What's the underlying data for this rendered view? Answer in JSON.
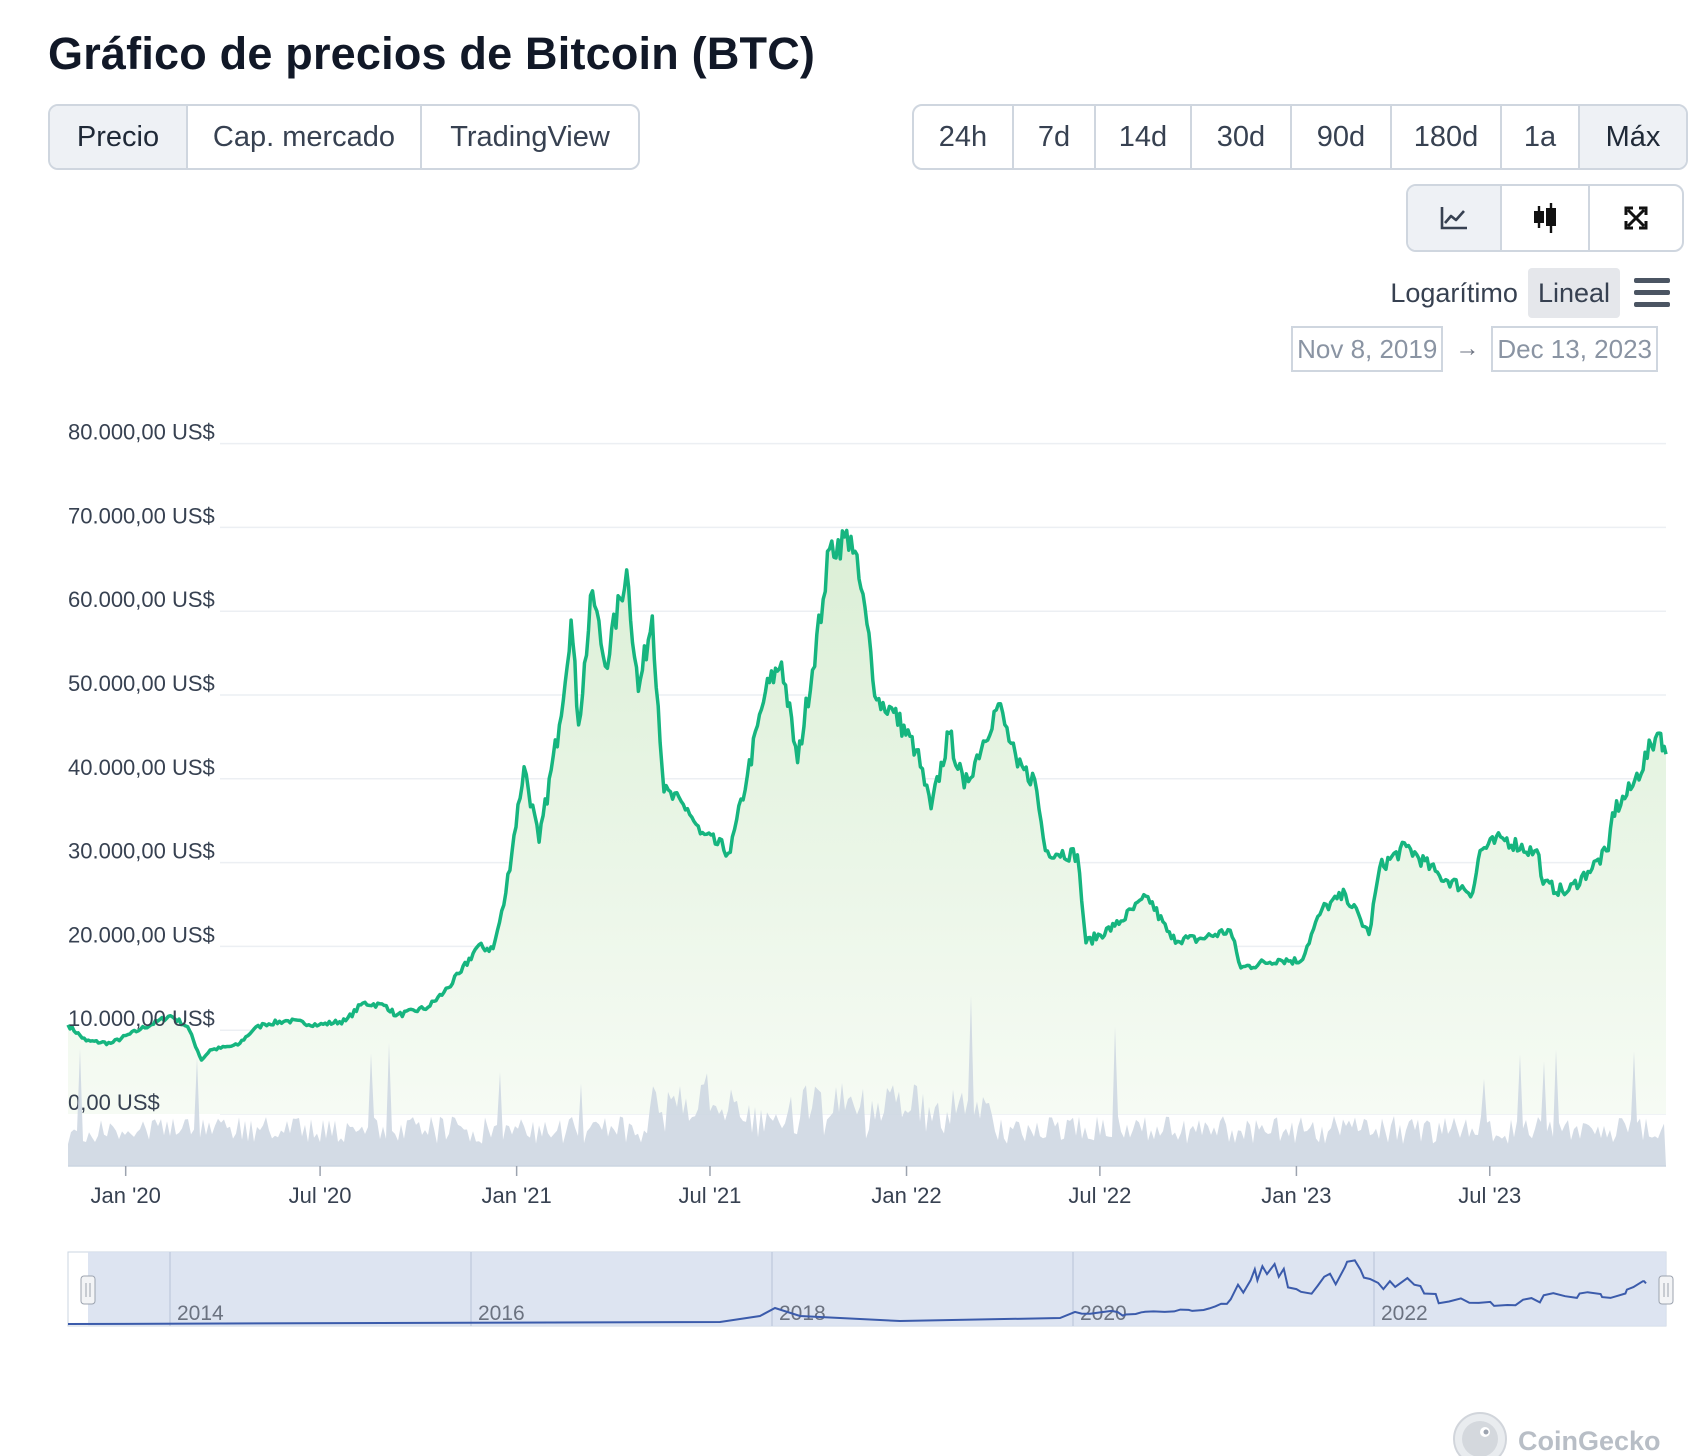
{
  "title": "Gráfico de precios de Bitcoin (BTC)",
  "view_tabs": [
    {
      "label": "Precio",
      "active": true
    },
    {
      "label": "Cap. mercado",
      "active": false
    },
    {
      "label": "TradingView",
      "active": false
    }
  ],
  "range_tabs": [
    {
      "label": "24h",
      "active": false
    },
    {
      "label": "7d",
      "active": false
    },
    {
      "label": "14d",
      "active": false
    },
    {
      "label": "30d",
      "active": false
    },
    {
      "label": "90d",
      "active": false
    },
    {
      "label": "180d",
      "active": false
    },
    {
      "label": "1a",
      "active": false
    },
    {
      "label": "Máx",
      "active": true
    }
  ],
  "tools": [
    {
      "icon": "line-chart-icon",
      "active": true
    },
    {
      "icon": "candlestick-icon",
      "active": false
    },
    {
      "icon": "expand-icon",
      "active": false
    }
  ],
  "scale": {
    "log_label": "Logarítimo",
    "linear_label": "Lineal",
    "active": "linear"
  },
  "date_range": {
    "from": "Nov 8, 2019",
    "to": "Dec 13, 2023",
    "arrow": "→"
  },
  "watermark": "CoinGecko",
  "colors": {
    "line": "#16b57f",
    "fill_top": "#dff0d8",
    "volume": "#cbd5e1",
    "navigator_line": "#3b5bab",
    "navigator_bg": "#d9e1f0"
  },
  "chart_data": {
    "type": "area",
    "y_scale": "linear",
    "ylim": [
      0,
      80000
    ],
    "y_ticks": [
      0,
      10000,
      20000,
      30000,
      40000,
      50000,
      60000,
      70000,
      80000
    ],
    "y_tick_labels": [
      "0,00 US$",
      "10.000,00 US$",
      "20.000,00 US$",
      "30.000,00 US$",
      "40.000,00 US$",
      "50.000,00 US$",
      "60.000,00 US$",
      "70.000,00 US$",
      "80.000,00 US$"
    ],
    "x_range": [
      "2019-11-08",
      "2023-12-13"
    ],
    "x_ticks": [
      "2020-01-01",
      "2020-07-01",
      "2021-01-01",
      "2021-07-01",
      "2022-01-01",
      "2022-07-01",
      "2023-01-01",
      "2023-07-01"
    ],
    "x_tick_labels": [
      "Jan '20",
      "Jul '20",
      "Jan '21",
      "Jul '21",
      "Jan '22",
      "Jul '22",
      "Jan '23",
      "Jul '23"
    ],
    "series": [
      {
        "values": [
          [
            "2019-11-08",
            9200
          ],
          [
            "2019-11-25",
            7300
          ],
          [
            "2019-12-18",
            7000
          ],
          [
            "2020-01-15",
            8700
          ],
          [
            "2020-02-12",
            10300
          ],
          [
            "2020-02-28",
            9000
          ],
          [
            "2020-03-12",
            5000
          ],
          [
            "2020-03-20",
            6200
          ],
          [
            "2020-04-15",
            6800
          ],
          [
            "2020-04-30",
            8700
          ],
          [
            "2020-05-10",
            9300
          ],
          [
            "2020-06-01",
            9700
          ],
          [
            "2020-06-30",
            9200
          ],
          [
            "2020-07-25",
            9700
          ],
          [
            "2020-08-10",
            11800
          ],
          [
            "2020-09-01",
            11500
          ],
          [
            "2020-09-10",
            10300
          ],
          [
            "2020-10-10",
            11300
          ],
          [
            "2020-10-25",
            13100
          ],
          [
            "2020-11-10",
            15500
          ],
          [
            "2020-11-25",
            18500
          ],
          [
            "2020-12-10",
            18300
          ],
          [
            "2020-12-20",
            23500
          ],
          [
            "2021-01-08",
            40000
          ],
          [
            "2021-01-22",
            31000
          ],
          [
            "2021-02-10",
            45000
          ],
          [
            "2021-02-21",
            57500
          ],
          [
            "2021-02-28",
            45000
          ],
          [
            "2021-03-13",
            61000
          ],
          [
            "2021-03-25",
            52000
          ],
          [
            "2021-04-14",
            63500
          ],
          [
            "2021-04-25",
            49000
          ],
          [
            "2021-05-08",
            58000
          ],
          [
            "2021-05-19",
            37000
          ],
          [
            "2021-06-10",
            35000
          ],
          [
            "2021-06-22",
            32000
          ],
          [
            "2021-07-20",
            29800
          ],
          [
            "2021-08-05",
            39000
          ],
          [
            "2021-08-22",
            49000
          ],
          [
            "2021-09-06",
            52500
          ],
          [
            "2021-09-21",
            40500
          ],
          [
            "2021-10-15",
            60000
          ],
          [
            "2021-10-21",
            66000
          ],
          [
            "2021-11-10",
            67500
          ],
          [
            "2021-11-25",
            57000
          ],
          [
            "2021-12-04",
            48000
          ],
          [
            "2021-12-20",
            46500
          ],
          [
            "2022-01-10",
            42000
          ],
          [
            "2022-01-24",
            35000
          ],
          [
            "2022-02-10",
            44000
          ],
          [
            "2022-02-24",
            37500
          ],
          [
            "2022-03-28",
            47500
          ],
          [
            "2022-04-15",
            40000
          ],
          [
            "2022-05-01",
            38500
          ],
          [
            "2022-05-11",
            30000
          ],
          [
            "2022-06-10",
            29500
          ],
          [
            "2022-06-18",
            19000
          ],
          [
            "2022-07-15",
            21000
          ],
          [
            "2022-08-15",
            24500
          ],
          [
            "2022-09-06",
            19500
          ],
          [
            "2022-10-01",
            19400
          ],
          [
            "2022-10-31",
            20500
          ],
          [
            "2022-11-10",
            16000
          ],
          [
            "2022-12-15",
            17000
          ],
          [
            "2023-01-05",
            16800
          ],
          [
            "2023-01-25",
            23000
          ],
          [
            "2023-02-16",
            24800
          ],
          [
            "2023-03-10",
            20000
          ],
          [
            "2023-03-20",
            28000
          ],
          [
            "2023-04-14",
            30500
          ],
          [
            "2023-05-15",
            27000
          ],
          [
            "2023-06-15",
            25000
          ],
          [
            "2023-06-22",
            30000
          ],
          [
            "2023-07-13",
            31500
          ],
          [
            "2023-08-16",
            29500
          ],
          [
            "2023-08-20",
            26000
          ],
          [
            "2023-09-11",
            25000
          ],
          [
            "2023-10-01",
            27500
          ],
          [
            "2023-10-20",
            30000
          ],
          [
            "2023-10-24",
            34500
          ],
          [
            "2023-11-10",
            37300
          ],
          [
            "2023-12-05",
            44000
          ],
          [
            "2023-12-08",
            44000
          ],
          [
            "2023-12-13",
            41500
          ]
        ]
      }
    ]
  },
  "navigator": {
    "year_labels": [
      "2014",
      "2016",
      "2018",
      "2020",
      "2022"
    ]
  }
}
